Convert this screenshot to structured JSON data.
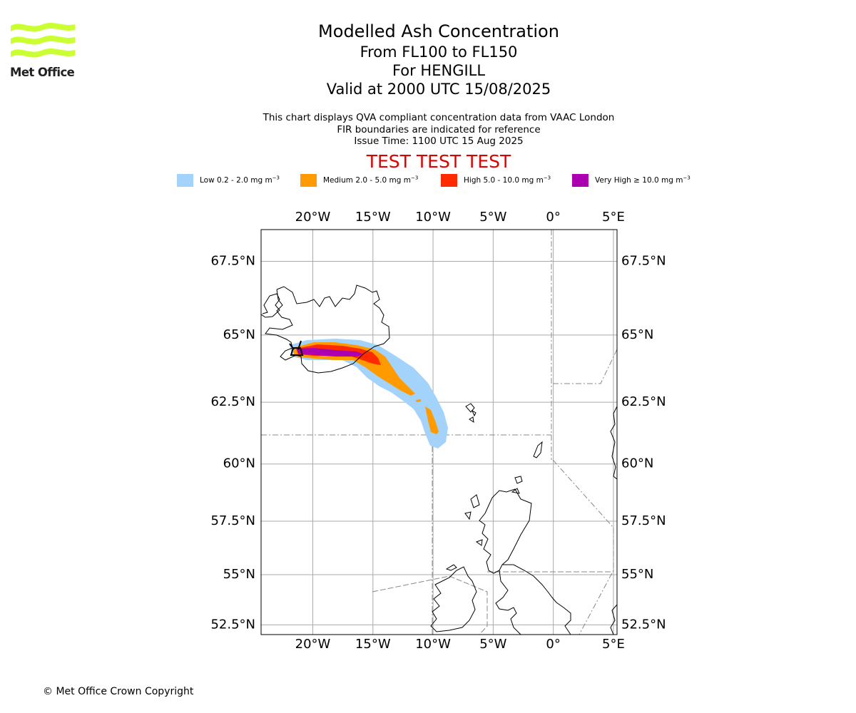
{
  "logo": {
    "text": "Met Office",
    "color": "#ccff33"
  },
  "title": {
    "line1": "Modelled Ash Concentration",
    "line2": "From FL100 to FL150",
    "line3": "For HENGILL",
    "line4": "Valid at 2000 UTC 15/08/2025"
  },
  "subtitle": {
    "line1": "This chart displays QVA compliant concentration data from VAAC London",
    "line2": "FIR boundaries are indicated for reference",
    "line3": "Issue Time: 1100 UTC 15 Aug 2025"
  },
  "banner": "TEST TEST TEST",
  "legend": [
    {
      "label": "Low 0.2 - 2.0 mg m",
      "color": "#a3d3fa"
    },
    {
      "label": "Medium 2.0 - 5.0 mg m",
      "color": "#ff9a00"
    },
    {
      "label": "High 5.0 - 10.0 mg m",
      "color": "#ff2a00"
    },
    {
      "label": "Very High ≥ 10.0 mg m",
      "color": "#ac00b0"
    }
  ],
  "legend_unit_exponent": "−3",
  "map": {
    "lon_range": [
      -24.3,
      5.3
    ],
    "lat_range": [
      52.0,
      68.5
    ],
    "lon_ticks": [
      {
        "lon": -20,
        "label": "20°W"
      },
      {
        "lon": -15,
        "label": "15°W"
      },
      {
        "lon": -10,
        "label": "10°W"
      },
      {
        "lon": -5,
        "label": "5°W"
      },
      {
        "lon": 0,
        "label": "0°"
      },
      {
        "lon": 5,
        "label": "5°E"
      }
    ],
    "lat_ticks": [
      {
        "lat": 67.5,
        "label": "67.5°N"
      },
      {
        "lat": 65,
        "label": "65°N"
      },
      {
        "lat": 62.5,
        "label": "62.5°N"
      },
      {
        "lat": 60,
        "label": "60°N"
      },
      {
        "lat": 57.5,
        "label": "57.5°N"
      },
      {
        "lat": 55,
        "label": "55°N"
      },
      {
        "lat": 52.5,
        "label": "52.5°N"
      }
    ],
    "grid": true,
    "volcano": {
      "name": "HENGILL",
      "lon": -21.3,
      "lat": 64.1
    }
  },
  "footer": "© Met Office Crown Copyright"
}
